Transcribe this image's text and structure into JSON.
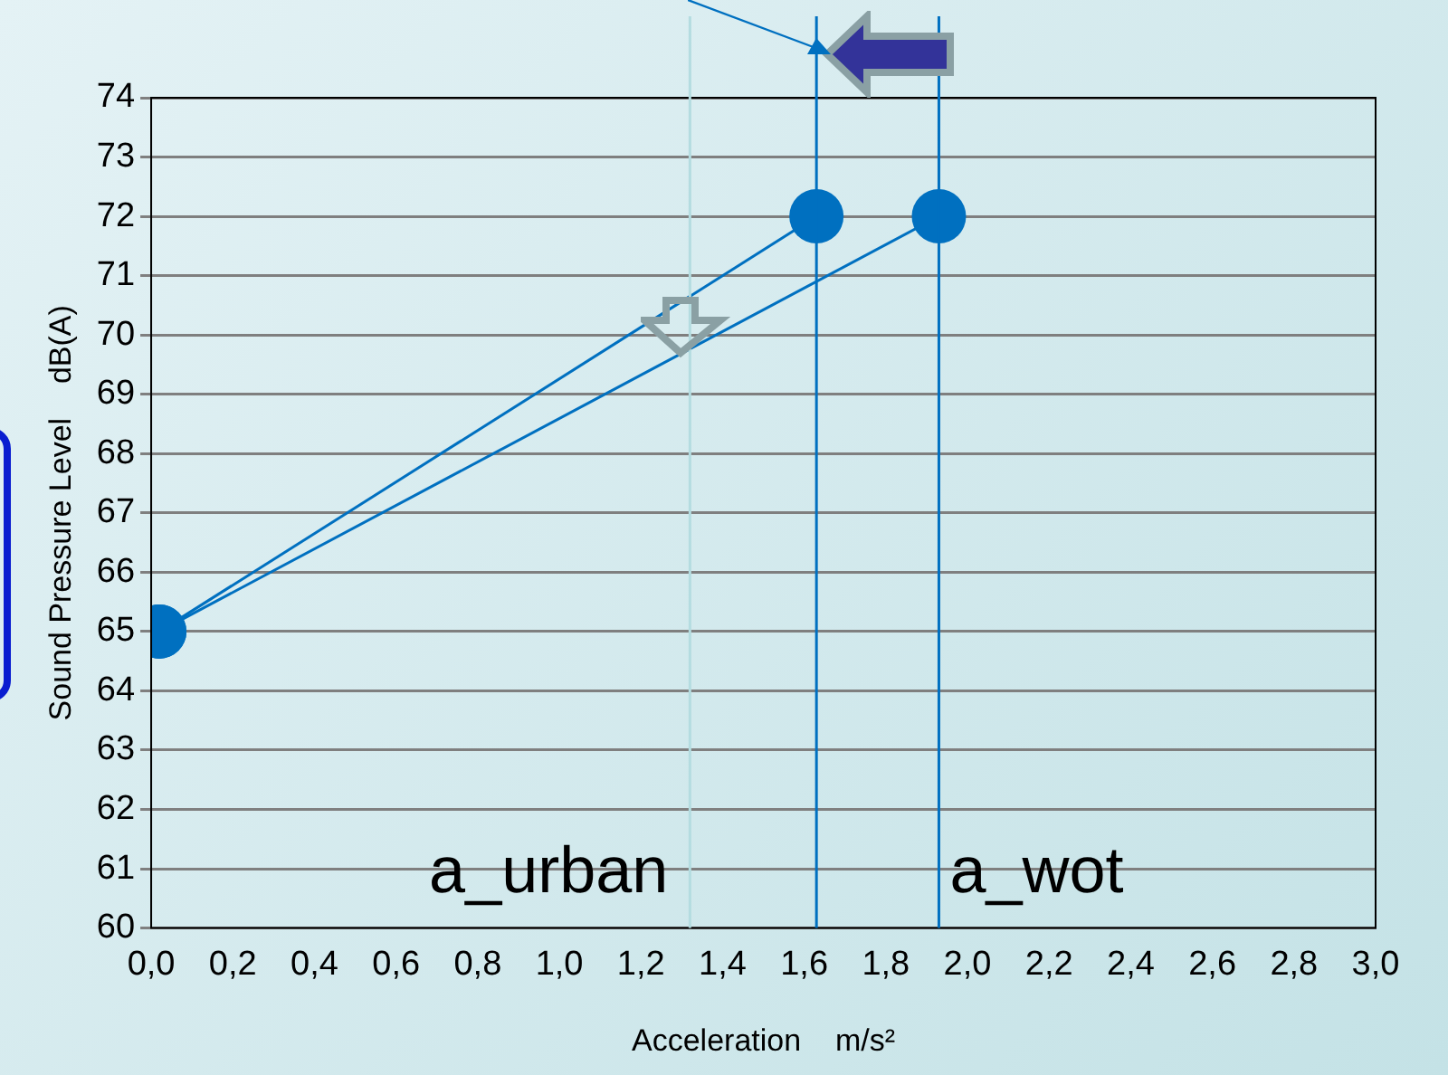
{
  "chart_data": {
    "type": "line",
    "xlabel": "Acceleration    m/s²",
    "ylabel": "Sound Pressure Level    dB(A)",
    "xlim": [
      0,
      3
    ],
    "xticks": [
      {
        "value": 0,
        "label": "0,0"
      },
      {
        "value": 0.2,
        "label": "0,2"
      },
      {
        "value": 0.4,
        "label": "0,4"
      },
      {
        "value": 0.6,
        "label": "0,6"
      },
      {
        "value": 0.8,
        "label": "0,8"
      },
      {
        "value": 1,
        "label": "1,0"
      },
      {
        "value": 1.2,
        "label": "1,2"
      },
      {
        "value": 1.4,
        "label": "1,4"
      },
      {
        "value": 1.6,
        "label": "1,6"
      },
      {
        "value": 1.8,
        "label": "1,8"
      },
      {
        "value": 2,
        "label": "2,0"
      },
      {
        "value": 2.2,
        "label": "2,2"
      },
      {
        "value": 2.4,
        "label": "2,4"
      },
      {
        "value": 2.6,
        "label": "2,6"
      },
      {
        "value": 2.8,
        "label": "2,8"
      },
      {
        "value": 3,
        "label": "3,0"
      }
    ],
    "ylim": [
      60,
      74
    ],
    "yticks": [
      60,
      61,
      62,
      63,
      64,
      65,
      66,
      67,
      68,
      69,
      70,
      71,
      72,
      73,
      74
    ],
    "series": [
      {
        "color": "#0070c0",
        "x": [
          0.02,
          1.63
        ],
        "values": [
          65,
          72
        ]
      },
      {
        "color": "#0070c0",
        "x": [
          0.02,
          1.93
        ],
        "values": [
          65,
          72
        ]
      }
    ],
    "ref_lines": [
      {
        "axis": "x",
        "value": 1.32,
        "color": "#b4dce0",
        "label": "a_urban"
      },
      {
        "axis": "x",
        "value": 1.63,
        "color": "#0070c0"
      },
      {
        "axis": "x",
        "value": 1.93,
        "color": "#0070c0",
        "label": "a_wot"
      }
    ],
    "grid": "y",
    "marker": "circle",
    "line_style": "solid",
    "legend": false
  }
}
